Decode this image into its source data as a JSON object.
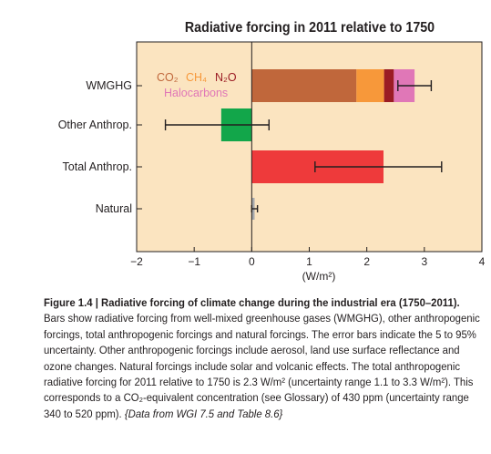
{
  "chart_data": {
    "type": "bar",
    "orientation": "horizontal",
    "stacked": true,
    "title": "Radiative forcing in 2011 relative to 1750",
    "xlabel": "(W/m²)",
    "xlim": [
      -2,
      4
    ],
    "xticks": [
      "−2",
      "−1",
      "0",
      "1",
      "2",
      "3",
      "4"
    ],
    "xtick_values": [
      -2,
      -1,
      0,
      1,
      2,
      3,
      4
    ],
    "categories": [
      "WMGHG",
      "Other Anthrop.",
      "Total Anthrop.",
      "Natural"
    ],
    "series": [
      {
        "name": "CO₂",
        "color": "#c0673b",
        "values": [
          1.82,
          null,
          null,
          null
        ]
      },
      {
        "name": "CH₄",
        "color": "#f7983a",
        "values": [
          0.48,
          null,
          null,
          null
        ]
      },
      {
        "name": "N₂O",
        "color": "#9b1c24",
        "values": [
          0.17,
          null,
          null,
          null
        ]
      },
      {
        "name": "Halocarbons",
        "color": "#e077b7",
        "values": [
          0.36,
          null,
          null,
          null
        ]
      },
      {
        "name": "Other Anthrop.",
        "color": "#12a64a",
        "values": [
          null,
          -0.53,
          null,
          null
        ]
      },
      {
        "name": "Total Anthrop.",
        "color": "#ee3a3b",
        "values": [
          null,
          null,
          2.29,
          null
        ]
      },
      {
        "name": "Natural",
        "color": "#a7a9ac",
        "values": [
          null,
          null,
          null,
          0.05
        ]
      }
    ],
    "error_bars": [
      {
        "category": "WMGHG",
        "low": 2.54,
        "high": 3.12
      },
      {
        "category": "Other Anthrop.",
        "low": -1.5,
        "high": 0.3
      },
      {
        "category": "Total Anthrop.",
        "low": 1.1,
        "high": 3.3
      },
      {
        "category": "Natural",
        "low": 0.0,
        "high": 0.1
      }
    ],
    "legend": {
      "placement": "inside-top-left",
      "row1": [
        {
          "label": "CO₂",
          "color": "#c0673b"
        },
        {
          "label": "CH₄",
          "color": "#f7983a"
        },
        {
          "label": "N₂O",
          "color": "#9b1c24"
        }
      ],
      "row2": [
        {
          "label": "Halocarbons",
          "color": "#e077b7"
        }
      ]
    },
    "background_color": "#fbe4c0",
    "grid": false
  },
  "caption": {
    "head": "Figure 1.4 | Radiative forcing of climate change during the industrial era (1750–2011).",
    "body": " Bars show radiative forcing from well-mixed greenhouse gases (WMGHG), other anthropogenic forcings, total anthropogenic forcings and natural forcings. The error bars indicate the 5 to 95% uncertainty. Other anthropogenic forcings include aerosol, land use surface reflectance and ozone changes. Natural forcings include solar and volcanic effects. The total anthropogenic radiative forcing for 2011 relative to 1750 is 2.3 W/m² (uncertainty range 1.1 to 3.3 W/m²). This corresponds to a CO₂-equivalent concentration (see Glossary) of 430 ppm (uncertainty range 340 to 520 ppm). ",
    "source": "{Data from WGI 7.5 and Table 8.6}"
  }
}
